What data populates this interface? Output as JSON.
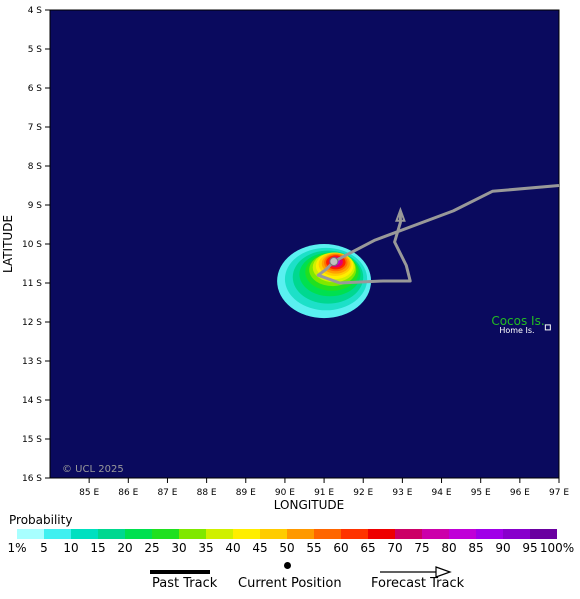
{
  "map": {
    "xlabel": "LONGITUDE",
    "ylabel": "LATITUDE",
    "lat_ticks": [
      "4 S",
      "5 S",
      "6 S",
      "7 S",
      "8 S",
      "9 S",
      "10 S",
      "11 S",
      "12 S",
      "13 S",
      "14 S",
      "15 S",
      "16 S"
    ],
    "lon_ticks": [
      "85 E",
      "86 E",
      "87 E",
      "88 E",
      "89 E",
      "90 E",
      "91 E",
      "92 E",
      "93 E",
      "94 E",
      "95 E",
      "96 E",
      "97 E"
    ],
    "lat_range": [
      -16,
      -4
    ],
    "lon_range": [
      84,
      97
    ],
    "copyright": "© UCL 2025",
    "places": [
      {
        "name": "Cocos Is.",
        "lon": 96.6,
        "lat": -12.0,
        "color": "#22bb22"
      },
      {
        "name": "Home Is.",
        "lon": 96.6,
        "lat": -12.15,
        "color": "#ffffff"
      }
    ],
    "ocean_color": "#0a0a5e",
    "track_color": "#999999",
    "track_points": [
      {
        "lon": 97.0,
        "lat": -8.5
      },
      {
        "lon": 95.3,
        "lat": -8.65
      },
      {
        "lon": 94.3,
        "lat": -9.15
      },
      {
        "lon": 92.3,
        "lat": -9.9
      },
      {
        "lon": 91.25,
        "lat": -10.45
      },
      {
        "lon": 91.05,
        "lat": -10.65
      },
      {
        "lon": 90.85,
        "lat": -10.8
      },
      {
        "lon": 91.4,
        "lat": -11.0
      },
      {
        "lon": 92.5,
        "lat": -10.95
      },
      {
        "lon": 93.2,
        "lat": -10.95
      },
      {
        "lon": 93.1,
        "lat": -10.55
      },
      {
        "lon": 92.8,
        "lat": -9.95
      },
      {
        "lon": 92.95,
        "lat": -9.45
      },
      {
        "lon": 92.95,
        "lat": -9.2
      }
    ],
    "current_position": {
      "lon": 91.25,
      "lat": -10.45
    },
    "probability_zones": [
      {
        "prob": 5,
        "color": "#5af0f0",
        "lon": 91.0,
        "lat": -10.95,
        "rx": 1.2,
        "ry": 0.95
      },
      {
        "prob": 10,
        "color": "#1de0c8",
        "lon": 91.05,
        "lat": -10.9,
        "rx": 1.05,
        "ry": 0.8
      },
      {
        "prob": 15,
        "color": "#00d890",
        "lon": 91.1,
        "lat": -10.85,
        "rx": 0.9,
        "ry": 0.68
      },
      {
        "prob": 20,
        "color": "#00e050",
        "lon": 91.15,
        "lat": -10.78,
        "rx": 0.78,
        "ry": 0.56
      },
      {
        "prob": 25,
        "color": "#20e020",
        "lon": 91.2,
        "lat": -10.72,
        "rx": 0.68,
        "ry": 0.48
      },
      {
        "prob": 30,
        "color": "#80e800",
        "lon": 91.22,
        "lat": -10.66,
        "rx": 0.6,
        "ry": 0.42
      },
      {
        "prob": 35,
        "color": "#d0f000",
        "lon": 91.25,
        "lat": -10.6,
        "rx": 0.54,
        "ry": 0.38
      },
      {
        "prob": 40,
        "color": "#ffee00",
        "lon": 91.27,
        "lat": -10.56,
        "rx": 0.48,
        "ry": 0.34
      },
      {
        "prob": 45,
        "color": "#ffcc00",
        "lon": 91.28,
        "lat": -10.52,
        "rx": 0.42,
        "ry": 0.3
      },
      {
        "prob": 50,
        "color": "#ffa000",
        "lon": 91.3,
        "lat": -10.5,
        "rx": 0.36,
        "ry": 0.26
      },
      {
        "prob": 55,
        "color": "#ff7000",
        "lon": 91.3,
        "lat": -10.48,
        "rx": 0.3,
        "ry": 0.22
      },
      {
        "prob": 60,
        "color": "#ff2000",
        "lon": 91.3,
        "lat": -10.47,
        "rx": 0.25,
        "ry": 0.18
      },
      {
        "prob": 65,
        "color": "#e00070",
        "lon": 91.3,
        "lat": -10.46,
        "rx": 0.18,
        "ry": 0.14
      },
      {
        "prob": 75,
        "color": "#c000e0",
        "lon": 91.3,
        "lat": -10.45,
        "rx": 0.11,
        "ry": 0.09
      }
    ]
  },
  "legend": {
    "title": "Probability",
    "labels": [
      "1%",
      "5",
      "10",
      "15",
      "20",
      "25",
      "30",
      "35",
      "40",
      "45",
      "50",
      "55",
      "60",
      "65",
      "70",
      "75",
      "80",
      "85",
      "90",
      "95",
      "100%"
    ],
    "colors": [
      "#a8ffff",
      "#40f0f0",
      "#00e0c0",
      "#00d890",
      "#00e050",
      "#20e020",
      "#80e800",
      "#d0f000",
      "#ffee00",
      "#ffcc00",
      "#ff9900",
      "#ff6600",
      "#ff3300",
      "#ee0000",
      "#cc0066",
      "#cc00aa",
      "#c000d8",
      "#a000e8",
      "#8800cc",
      "#6a00a0"
    ]
  },
  "key": {
    "past_track": "Past Track",
    "current_position": "Current Position",
    "forecast_track": "Forecast Track"
  }
}
